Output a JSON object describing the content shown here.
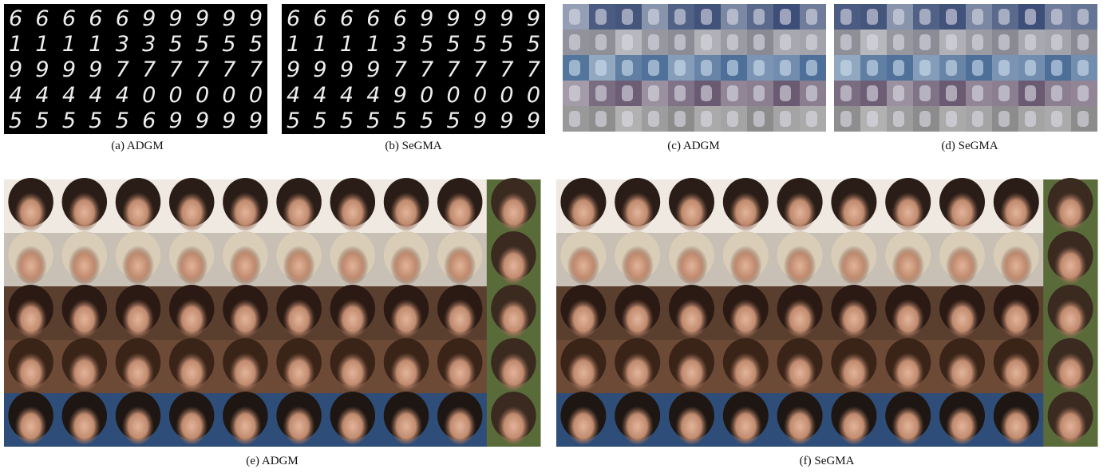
{
  "figure": {
    "panels": [
      {
        "caption": "(a) ADGM",
        "digit_rows": [
          "6666699999",
          "1111335555",
          "9999777777",
          "4444400000",
          "5555569999"
        ]
      },
      {
        "caption": "(b) SeGMA",
        "digit_rows": [
          "6666699999",
          "1111355555",
          "9999777777",
          "4444900000",
          "5555555999"
        ]
      },
      {
        "caption": "(c) ADGM"
      },
      {
        "caption": "(d) SeGMA"
      },
      {
        "caption": "(e) ADGM"
      },
      {
        "caption": "(f) SeGMA"
      }
    ]
  }
}
